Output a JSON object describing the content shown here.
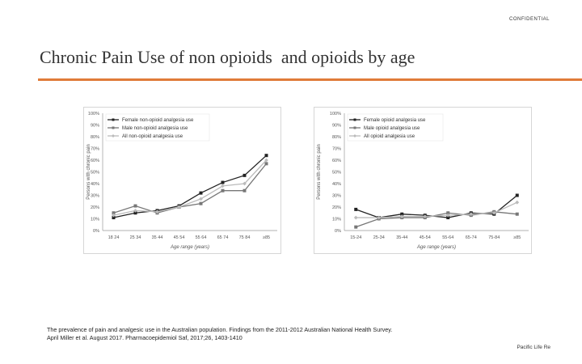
{
  "header": {
    "confidential": "CONFIDENTIAL"
  },
  "slide": {
    "title": "Chronic Pain Use of non opioids  and opioids by age"
  },
  "chart_data": [
    {
      "type": "line",
      "title": "",
      "xlabel": "Age range (years)",
      "ylabel": "Persons with chronic pain",
      "ylim": [
        0,
        100
      ],
      "yticks": [
        "0%",
        "10%",
        "20%",
        "30%",
        "40%",
        "50%",
        "60%",
        "70%",
        "80%",
        "90%",
        "100%"
      ],
      "categories": [
        "18 24",
        "25 34",
        "35 44",
        "45 54",
        "55 64",
        "65 74",
        "75 84",
        "≥85"
      ],
      "legend_position": "top-left",
      "series": [
        {
          "name": "Female non-opioid analgesia use",
          "color": "#222222",
          "marker": "square",
          "values": [
            11,
            15,
            17,
            21,
            32,
            41,
            47,
            64
          ]
        },
        {
          "name": "Male non-opioid analgesia use",
          "color": "#777777",
          "marker": "square",
          "values": [
            15,
            21,
            15,
            20,
            23,
            34,
            34,
            57
          ]
        },
        {
          "name": "All non-opioid analgesia use",
          "color": "#bbbbbb",
          "marker": "diamond",
          "values": [
            13,
            17,
            16,
            20,
            27,
            38,
            40,
            60
          ]
        }
      ]
    },
    {
      "type": "line",
      "title": "",
      "xlabel": "Age range (years)",
      "ylabel": "Persons with chronic pain",
      "ylim": [
        0,
        100
      ],
      "yticks": [
        "0%",
        "10%",
        "20%",
        "30%",
        "40%",
        "50%",
        "60%",
        "70%",
        "80%",
        "90%",
        "100%"
      ],
      "categories": [
        "15-24",
        "25-34",
        "35-44",
        "45-54",
        "55-64",
        "65-74",
        "75-84",
        "≥85"
      ],
      "legend_position": "top-left",
      "series": [
        {
          "name": "Female opioid analgesia use",
          "color": "#222222",
          "marker": "square",
          "values": [
            18,
            11,
            14,
            13,
            11,
            15,
            14,
            30
          ]
        },
        {
          "name": "Male opioid analgesia use",
          "color": "#777777",
          "marker": "square",
          "values": [
            3,
            10,
            11,
            11,
            15,
            13,
            16,
            14
          ]
        },
        {
          "name": "All opioid analgesia use",
          "color": "#bbbbbb",
          "marker": "diamond",
          "values": [
            11,
            11,
            12,
            12,
            13,
            14,
            15,
            24
          ]
        }
      ]
    }
  ],
  "citation": {
    "line1": "The prevalence of pain and analgesic use in the Australian population. Findings from the 2011-2012 Australian National Health Survey.",
    "line2": "April Miller et al. August 2017. Pharmacoepidemiol Saf, 2017;26, 1403-1410"
  },
  "footer": {
    "brand": "Pacific Life Re"
  }
}
